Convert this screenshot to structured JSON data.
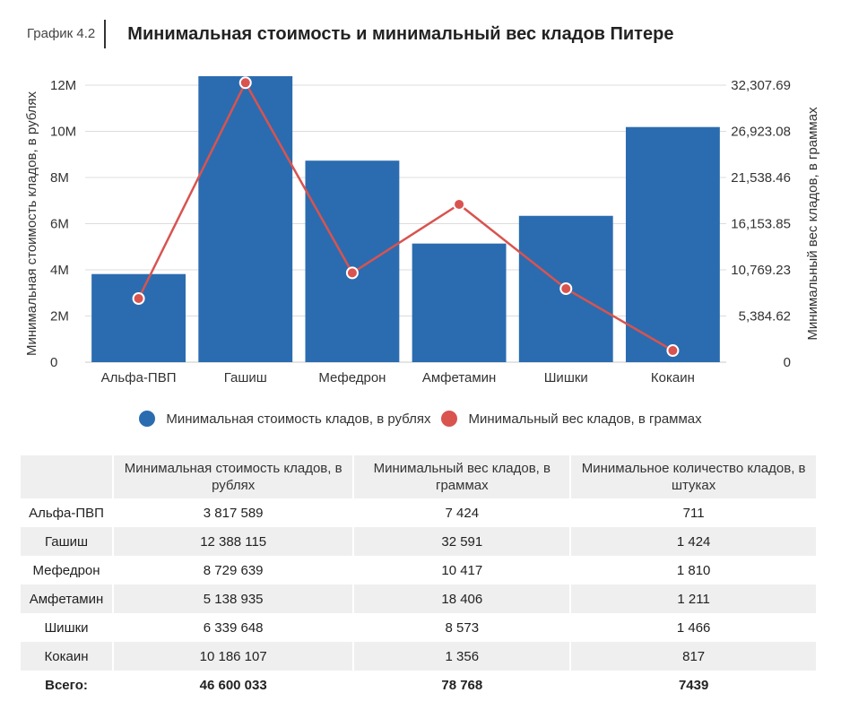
{
  "header": {
    "tag": "График 4.2",
    "title": "Минимальная стоимость и минимальный вес кладов Питере"
  },
  "chart_data": {
    "type": "bar",
    "categories": [
      "Альфа-ПВП",
      "Гашиш",
      "Мефедрон",
      "Амфетамин",
      "Шишки",
      "Кокаин"
    ],
    "series": [
      {
        "name": "Минимальная стоимость кладов, в рублях",
        "type": "bar",
        "axis": "left",
        "color": "#2b6cb0",
        "values": [
          3817589,
          12388115,
          8729639,
          5138935,
          6339648,
          10186107
        ]
      },
      {
        "name": "Минимальный вес кладов, в граммах",
        "type": "line",
        "axis": "right",
        "color": "#d9534f",
        "values": [
          7424,
          32591,
          10417,
          18406,
          8573,
          1356
        ]
      }
    ],
    "ylabel": "Минимальная стоимость кладов, в рублях",
    "y2label": "Минимальный вес кладов, в граммах",
    "ylim": [
      0,
      12000000
    ],
    "y2lim": [
      0,
      32307.69
    ],
    "yticks": [
      "0",
      "2M",
      "4M",
      "6M",
      "8M",
      "10M",
      "12M"
    ],
    "y2ticks": [
      "0",
      "5,384.62",
      "10,769.23",
      "16,153.85",
      "21,538.46",
      "26,923.08",
      "32,307.69"
    ],
    "grid": true,
    "legend": "bottom"
  },
  "legend": [
    {
      "label": "Минимальная стоимость кладов, в рублях",
      "color": "#2b6cb0"
    },
    {
      "label": "Минимальный вес кладов, в граммах",
      "color": "#d9534f"
    }
  ],
  "table": {
    "headers": [
      "",
      "Минимальная стоимость кладов, в рублях",
      "Минимальный вес кладов, в граммах",
      "Минимальное количество кладов, в штуках"
    ],
    "rows": [
      [
        "Альфа-ПВП",
        "3 817 589",
        "7 424",
        "711"
      ],
      [
        "Гашиш",
        "12 388 115",
        "32 591",
        "1 424"
      ],
      [
        "Мефедрон",
        "8 729 639",
        "10 417",
        "1 810"
      ],
      [
        "Амфетамин",
        "5 138 935",
        "18 406",
        "1 211"
      ],
      [
        "Шишки",
        "6 339 648",
        "8 573",
        "1 466"
      ],
      [
        "Кокаин",
        "10 186 107",
        "1 356",
        "817"
      ]
    ],
    "total": [
      "Всего:",
      "46 600 033",
      "78 768",
      "7439"
    ]
  }
}
